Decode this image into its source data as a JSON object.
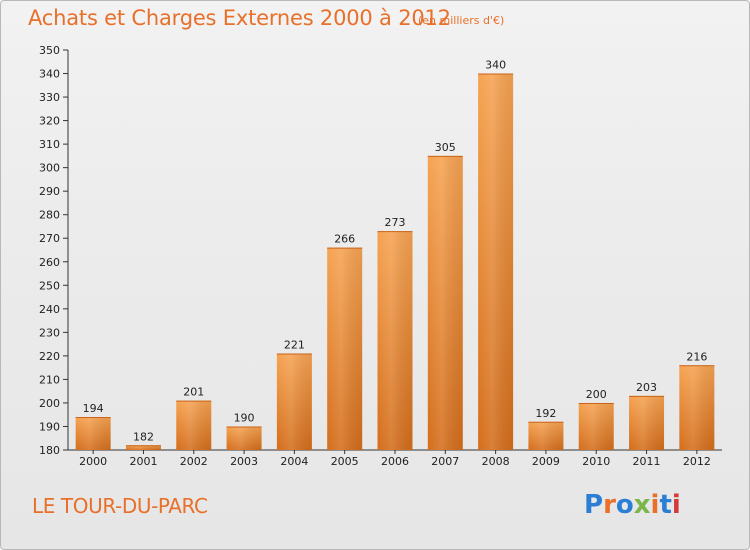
{
  "title": "Achats et Charges Externes 2000 à 2012",
  "subtitle": "(en milliers d'€)",
  "location": "LE TOUR-DU-PARC",
  "logo": "Proxiti",
  "logo_colors": [
    "#2a7fd4",
    "#e8702a",
    "#2a7fd4",
    "#7ab648",
    "#e8702a",
    "#2a7fd4",
    "#d43a3a"
  ],
  "bar_color_top": "#f6a352",
  "bar_color_bottom": "#d46e1c",
  "chart_data": {
    "type": "bar",
    "categories": [
      "2000",
      "2001",
      "2002",
      "2003",
      "2004",
      "2005",
      "2006",
      "2007",
      "2008",
      "2009",
      "2010",
      "2011",
      "2012"
    ],
    "values": [
      194,
      182,
      201,
      190,
      221,
      266,
      273,
      305,
      340,
      192,
      200,
      203,
      216
    ],
    "ylim": [
      180,
      350
    ],
    "yticks": [
      180,
      190,
      200,
      210,
      220,
      230,
      240,
      250,
      260,
      270,
      280,
      290,
      300,
      310,
      320,
      330,
      340,
      350
    ],
    "title": "Achats et Charges Externes 2000 à 2012",
    "xlabel": "",
    "ylabel": "",
    "grid": false
  }
}
